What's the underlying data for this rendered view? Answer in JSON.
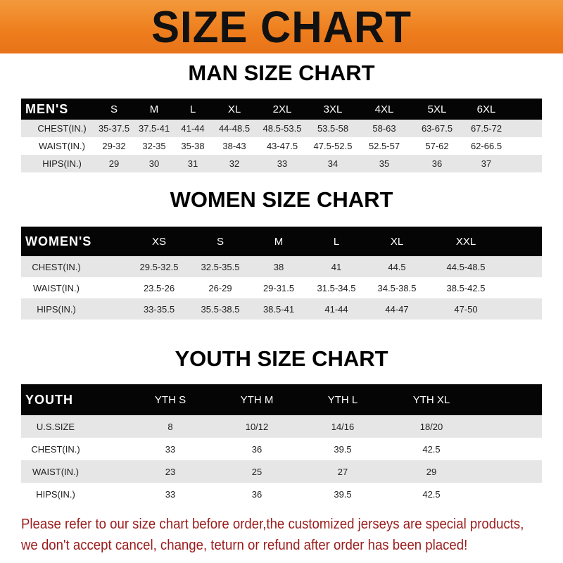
{
  "banner": {
    "title": "SIZE CHART",
    "color": "#ee7d1c"
  },
  "men": {
    "title": "MAN SIZE CHART",
    "header": [
      "MEN'S",
      "S",
      "M",
      "L",
      "XL",
      "2XL",
      "3XL",
      "4XL",
      "5XL",
      "6XL"
    ],
    "rows": [
      [
        "CHEST(IN.)",
        "35-37.5",
        "37.5-41",
        "41-44",
        "44-48.5",
        "48.5-53.5",
        "53.5-58",
        "58-63",
        "63-67.5",
        "67.5-72"
      ],
      [
        "WAIST(IN.)",
        "29-32",
        "32-35",
        "35-38",
        "38-43",
        "43-47.5",
        "47.5-52.5",
        "52.5-57",
        "57-62",
        "62-66.5"
      ],
      [
        "HIPS(IN.)",
        "29",
        "30",
        "31",
        "32",
        "33",
        "34",
        "35",
        "36",
        "37"
      ]
    ]
  },
  "women": {
    "title": "WOMEN SIZE CHART",
    "header": [
      "WOMEN'S",
      "XS",
      "S",
      "M",
      "L",
      "XL",
      "XXL"
    ],
    "rows": [
      [
        "CHEST(IN.)",
        "29.5-32.5",
        "32.5-35.5",
        "38",
        "41",
        "44.5",
        "44.5-48.5"
      ],
      [
        "WAIST(IN.)",
        "23.5-26",
        "26-29",
        "29-31.5",
        "31.5-34.5",
        "34.5-38.5",
        "38.5-42.5"
      ],
      [
        "HIPS(IN.)",
        "33-35.5",
        "35.5-38.5",
        "38.5-41",
        "41-44",
        "44-47",
        "47-50"
      ]
    ]
  },
  "youth": {
    "title": "YOUTH SIZE CHART",
    "header": [
      "YOUTH",
      "YTH S",
      "YTH M",
      "YTH L",
      "YTH XL"
    ],
    "rows": [
      [
        "U.S.SIZE",
        "8",
        "10/12",
        "14/16",
        "18/20"
      ],
      [
        "CHEST(IN.)",
        "33",
        "36",
        "39.5",
        "42.5"
      ],
      [
        "WAIST(IN.)",
        "23",
        "25",
        "27",
        "29"
      ],
      [
        "HIPS(IN.)",
        "33",
        "36",
        "39.5",
        "42.5"
      ]
    ]
  },
  "notice": {
    "line1": "Please refer to our size chart before order,the customized jerseys are special products,",
    "line2": "we don't accept cancel, change, teturn or refund after order has been placed!",
    "color": "#9b1b1b"
  }
}
